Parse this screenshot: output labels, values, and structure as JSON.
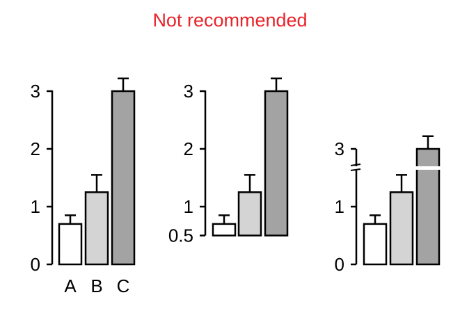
{
  "title": "Not recommended",
  "colors": {
    "title": "#e8232a",
    "axis": "#000000",
    "break_gap": "#ffffff"
  },
  "chart_data": [
    {
      "type": "bar",
      "categories": [
        "A",
        "B",
        "C"
      ],
      "values": [
        0.7,
        1.25,
        3.0
      ],
      "errors": [
        0.15,
        0.3,
        0.22
      ],
      "bar_colors": [
        "#ffffff",
        "#d4d4d4",
        "#a3a3a3"
      ],
      "ylim": [
        0,
        3
      ],
      "yticks": [
        "0",
        "1",
        "2",
        "3"
      ],
      "xticklabels_shown": true
    },
    {
      "type": "bar",
      "categories": [
        "A",
        "B",
        "C"
      ],
      "values": [
        0.7,
        1.25,
        3.0
      ],
      "errors": [
        0.15,
        0.3,
        0.22
      ],
      "bar_colors": [
        "#ffffff",
        "#d4d4d4",
        "#a3a3a3"
      ],
      "ylim": [
        0.5,
        3
      ],
      "yticks": [
        "0.5",
        "1",
        "2",
        "3"
      ],
      "xticklabels_shown": false
    },
    {
      "type": "bar",
      "categories": [
        "A",
        "B",
        "C"
      ],
      "values": [
        0.7,
        1.25,
        3.0
      ],
      "errors": [
        0.15,
        0.3,
        0.22
      ],
      "bar_colors": [
        "#ffffff",
        "#d4d4d4",
        "#a3a3a3"
      ],
      "ylim": [
        0,
        3
      ],
      "axis_break": [
        1.7,
        2.6
      ],
      "yticks": [
        "0",
        "1",
        "3"
      ],
      "xticklabels_shown": false
    }
  ]
}
